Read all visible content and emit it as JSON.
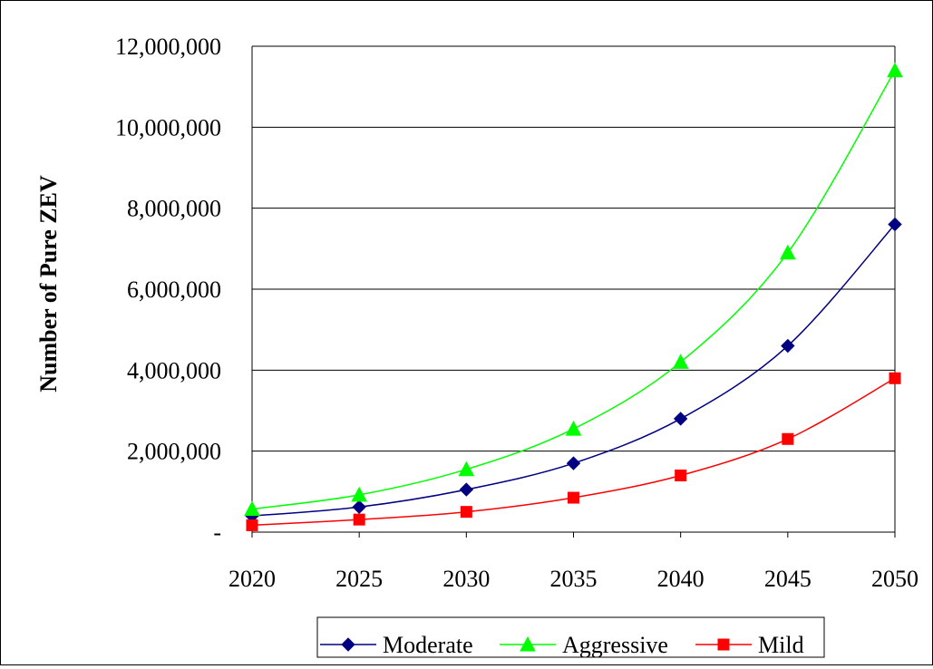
{
  "chart_data": {
    "type": "line",
    "title": "",
    "xlabel": "",
    "ylabel": "Number of Pure ZEV",
    "categories": [
      "2020",
      "2025",
      "2030",
      "2035",
      "2040",
      "2045",
      "2050"
    ],
    "x": [
      2020,
      2025,
      2030,
      2035,
      2040,
      2045,
      2050
    ],
    "ylim": [
      0,
      12000000
    ],
    "yticks": [
      0,
      2000000,
      4000000,
      6000000,
      8000000,
      10000000,
      12000000
    ],
    "ytick_labels": [
      "-",
      "2,000,000",
      "4,000,000",
      "6,000,000",
      "8,000,000",
      "10,000,000",
      "12,000,000"
    ],
    "grid": true,
    "legend_position": "bottom",
    "series": [
      {
        "name": "Moderate",
        "color": "#000080",
        "marker": "diamond",
        "values": [
          400000,
          620000,
          1050000,
          1700000,
          2800000,
          4600000,
          7600000
        ]
      },
      {
        "name": "Aggressive",
        "color": "#00ff00",
        "marker": "triangle",
        "values": [
          570000,
          920000,
          1550000,
          2550000,
          4200000,
          6900000,
          11400000
        ]
      },
      {
        "name": "Mild",
        "color": "#ff0000",
        "marker": "square",
        "values": [
          170000,
          310000,
          500000,
          850000,
          1400000,
          2300000,
          3800000
        ]
      }
    ]
  }
}
